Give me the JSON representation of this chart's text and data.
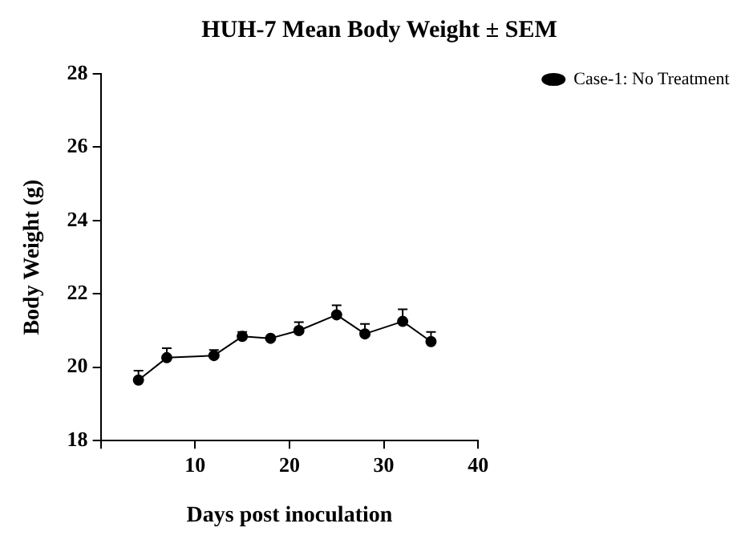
{
  "chart_data": {
    "type": "line",
    "title": "HUH-7 Mean Body Weight ± SEM",
    "xlabel": "Days post inoculation",
    "ylabel": "Body Weight (g)",
    "x": [
      4,
      7,
      12,
      15,
      18,
      21,
      25,
      28,
      32,
      35
    ],
    "series": [
      {
        "name": "Case-1: No Treatment",
        "color": "#000000",
        "values": [
          19.65,
          20.26,
          20.32,
          20.84,
          20.79,
          21.0,
          21.43,
          20.91,
          21.25,
          20.7
        ],
        "errors": [
          [
            19.65,
            19.91
          ],
          [
            20.26,
            20.52
          ],
          [
            20.32,
            20.47
          ],
          [
            20.84,
            20.96
          ],
          null,
          [
            21.0,
            21.23
          ],
          [
            21.43,
            21.69
          ],
          [
            20.91,
            21.18
          ],
          [
            21.25,
            21.58
          ],
          [
            20.7,
            20.96
          ]
        ]
      }
    ],
    "xlim": [
      0,
      40
    ],
    "xticks": [
      {
        "value": 0,
        "label": null
      },
      10,
      20,
      30,
      40
    ],
    "ylim": [
      18,
      28
    ],
    "yticks": [
      18,
      20,
      22,
      24,
      26,
      28
    ],
    "grid": false,
    "legend": "top right",
    "marker": "circle",
    "line_style": "solid"
  }
}
